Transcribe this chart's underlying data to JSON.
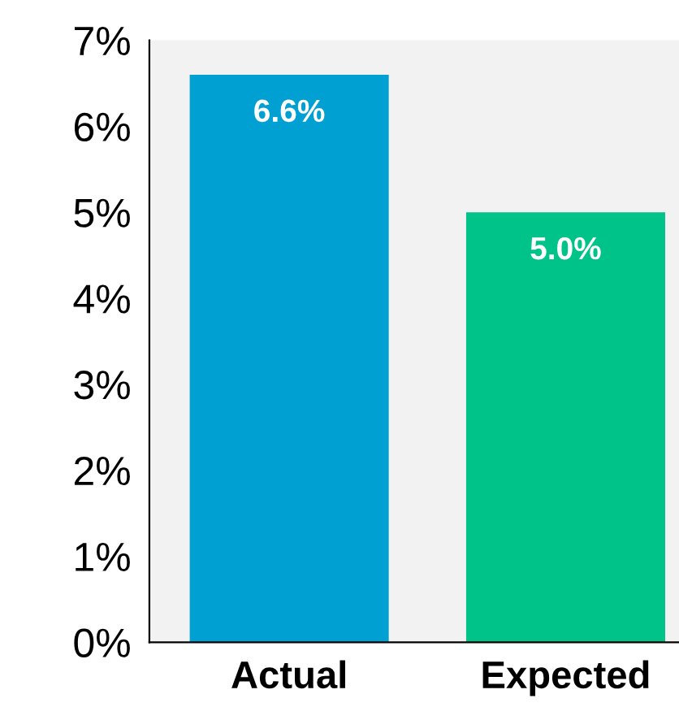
{
  "chart_data": {
    "type": "bar",
    "categories": [
      "Actual",
      "Expected"
    ],
    "values": [
      6.6,
      5.0
    ],
    "colors": [
      "#00a0d2",
      "#00c389"
    ],
    "value_labels": [
      "6.6%",
      "5.0%"
    ],
    "ylim": [
      0,
      7
    ],
    "yticks": [
      {
        "value": 0,
        "label": "0%"
      },
      {
        "value": 1,
        "label": "1%"
      },
      {
        "value": 2,
        "label": "2%"
      },
      {
        "value": 3,
        "label": "3%"
      },
      {
        "value": 4,
        "label": "4%"
      },
      {
        "value": 5,
        "label": "5%"
      },
      {
        "value": 6,
        "label": "6%"
      },
      {
        "value": 7,
        "label": "7%"
      }
    ],
    "grid": false
  }
}
